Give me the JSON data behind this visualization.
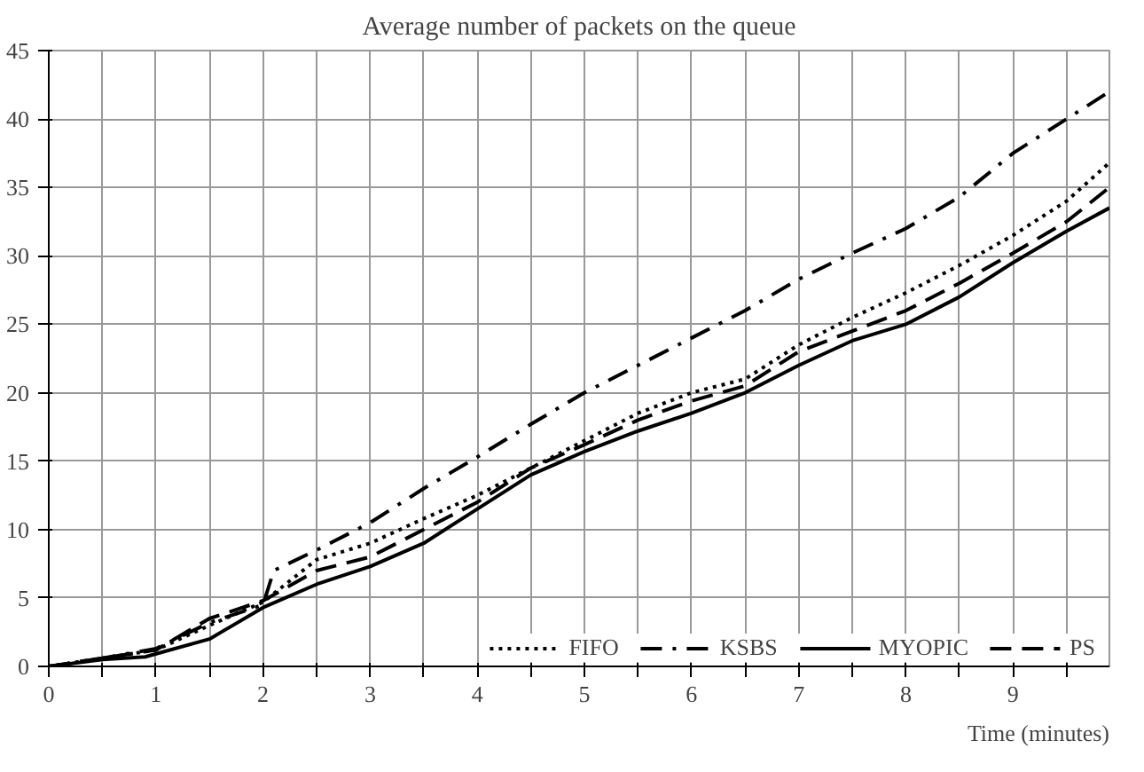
{
  "chart_data": {
    "type": "line",
    "title": "Average number of packets on the queue",
    "xlabel": "Time (minutes)",
    "xlim": [
      0,
      9.9
    ],
    "ylim": [
      0,
      45
    ],
    "xticks": [
      0,
      {
        "value": 0.5,
        "label": null
      },
      1,
      {
        "value": 1.5,
        "label": null
      },
      2,
      {
        "value": 2.5,
        "label": null
      },
      3,
      {
        "value": 3.5,
        "label": null
      },
      4,
      {
        "value": 4.5,
        "label": null
      },
      5,
      {
        "value": 5.5,
        "label": null
      },
      6,
      {
        "value": 6.5,
        "label": null
      },
      7,
      {
        "value": 7.5,
        "label": null
      },
      8,
      {
        "value": 8.5,
        "label": null
      },
      9,
      {
        "value": 9.5,
        "label": null
      }
    ],
    "yticks": [
      0,
      5,
      10,
      15,
      20,
      25,
      30,
      35,
      40,
      45
    ],
    "grid": true,
    "legend": "bottom right",
    "series": [
      {
        "name": "FIFO",
        "color": "#000000",
        "line_style": "dotted",
        "x": [
          0,
          0.5,
          1,
          1.5,
          2,
          2.5,
          3,
          3.5,
          4,
          4.5,
          5,
          5.5,
          6,
          6.5,
          7,
          7.5,
          8,
          8.5,
          9,
          9.5,
          9.9
        ],
        "values": [
          0,
          0.6,
          1.2,
          3,
          4.7,
          7.8,
          9,
          10.8,
          12.5,
          14.5,
          16.5,
          18.5,
          20,
          21,
          23.5,
          25.5,
          27.3,
          29.3,
          31.5,
          34,
          36.8
        ]
      },
      {
        "name": "KSBS",
        "color": "#000000",
        "line_style": "dashdot",
        "x": [
          0,
          0.5,
          1,
          1.5,
          2,
          2.1,
          2.5,
          3,
          3.5,
          4,
          4.5,
          5,
          5.5,
          6,
          6.5,
          7,
          7.5,
          8,
          8.5,
          9,
          9.5,
          9.9
        ],
        "values": [
          0,
          0.6,
          1.3,
          3.2,
          4.5,
          7,
          8.5,
          10.5,
          13,
          15.3,
          17.7,
          20,
          22,
          24,
          26,
          28.3,
          30.2,
          32,
          34.3,
          37.5,
          40,
          42
        ]
      },
      {
        "name": "MYOPIC",
        "color": "#000000",
        "line_style": "solid",
        "x": [
          0,
          0.5,
          0.9,
          1.5,
          2,
          2.5,
          3,
          3.5,
          4,
          4.5,
          5,
          5.5,
          6,
          6.5,
          7,
          7.5,
          8,
          8.5,
          9,
          9.5,
          9.9
        ],
        "values": [
          0,
          0.5,
          0.7,
          2,
          4.3,
          6,
          7.3,
          9,
          11.5,
          14,
          15.7,
          17.2,
          18.5,
          20,
          22,
          23.8,
          25,
          27,
          29.5,
          31.8,
          33.5
        ]
      },
      {
        "name": "PS",
        "color": "#000000",
        "line_style": "dashed",
        "x": [
          0,
          0.5,
          1,
          1.5,
          2,
          2.5,
          3,
          3.5,
          4,
          4.5,
          5,
          5.5,
          6,
          6.5,
          7,
          7.5,
          8,
          8.5,
          9,
          9.5,
          9.9
        ],
        "values": [
          0,
          0.6,
          1.2,
          3.5,
          4.8,
          7,
          8,
          10,
          12,
          14.5,
          16.2,
          18,
          19.4,
          20.5,
          23,
          24.5,
          26,
          28,
          30.2,
          32.5,
          35
        ]
      }
    ]
  }
}
